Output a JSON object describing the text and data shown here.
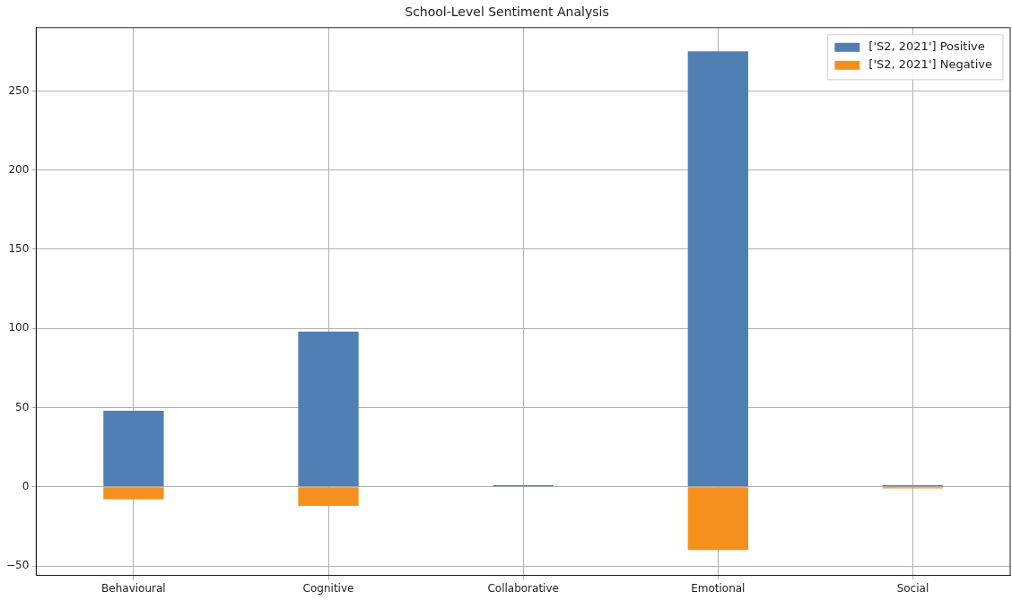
{
  "chart_data": {
    "type": "bar",
    "title": "School-Level Sentiment Analysis",
    "categories": [
      "Behavioural",
      "Cognitive",
      "Collaborative",
      "Emotional",
      "Social"
    ],
    "series": [
      {
        "name": "['S2, 2021'] Positive",
        "color": "#4f7fb3",
        "values": [
          48,
          98,
          1,
          275,
          1
        ]
      },
      {
        "name": "['S2, 2021'] Negative",
        "color": "#f5901e",
        "values": [
          -8,
          -12,
          0,
          -40,
          -1
        ]
      }
    ],
    "stacked": true,
    "ylim": [
      -56,
      290
    ],
    "yticks": [
      -50,
      0,
      50,
      100,
      150,
      200,
      250
    ],
    "grid": true,
    "legend": "top right"
  }
}
